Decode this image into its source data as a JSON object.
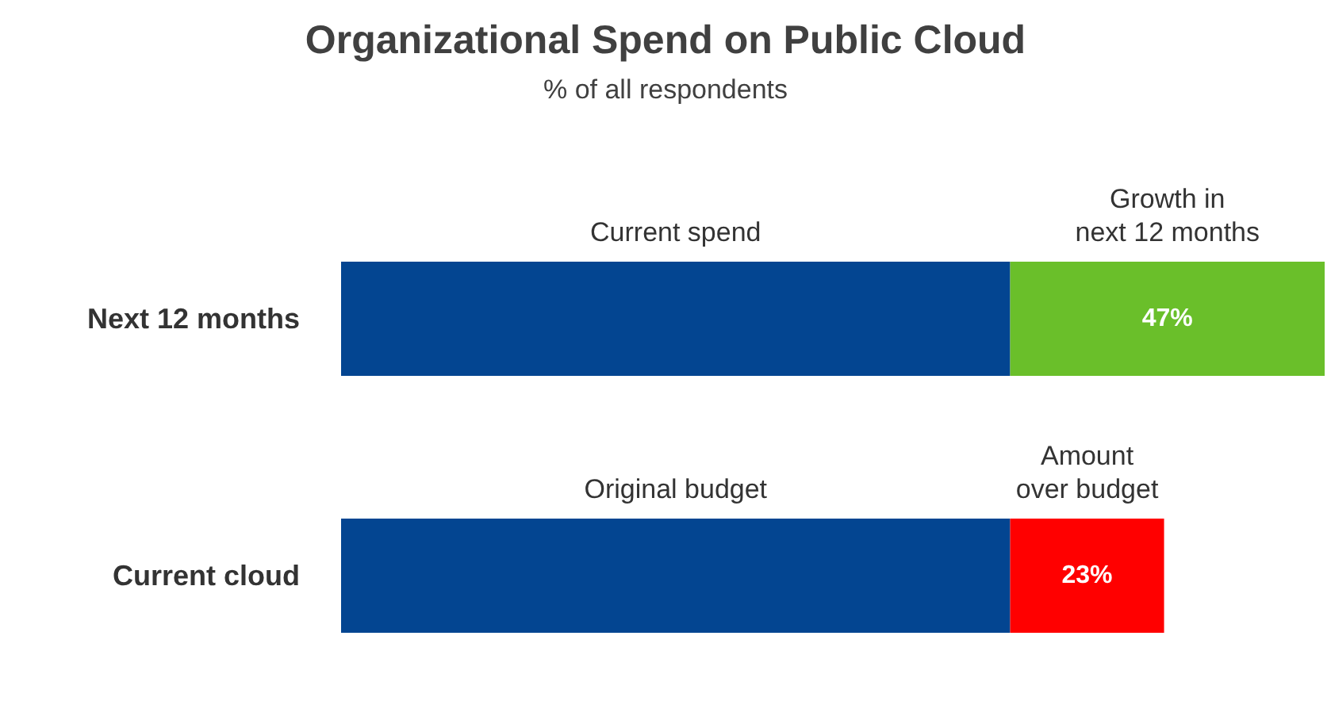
{
  "chart_data": {
    "type": "bar",
    "title": "Organizational Spend on Public Cloud",
    "subtitle": "% of all respondents",
    "orientation": "horizontal",
    "stacked": true,
    "tick_labels": "y",
    "categories": [
      "Next 12 months",
      "Current cloud"
    ],
    "series": [
      {
        "color": "#034591",
        "values": [
          100,
          100
        ],
        "value_labels": [
          null,
          null
        ]
      },
      {
        "color": "#6abf2a",
        "values": [
          47,
          null
        ],
        "value_labels": [
          "47%",
          null
        ]
      },
      {
        "color": "#ff0000",
        "values": [
          null,
          23
        ],
        "value_labels": [
          null,
          "23%"
        ]
      }
    ],
    "annotations": [
      "Current spend",
      "Growth in\nnext 12 months",
      "Original budget",
      "Amount\nover budget"
    ]
  }
}
